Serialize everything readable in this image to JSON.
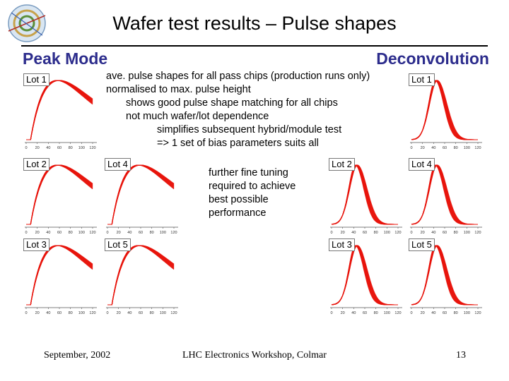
{
  "title": "Wafer test results – Pulse shapes",
  "sections": {
    "left": "Peak Mode",
    "right": "Deconvolution"
  },
  "notes": {
    "lines": [
      "ave. pulse shapes for all pass chips (production runs only)",
      "normalised to max. pulse height",
      "shows good pulse shape matching for all chips",
      "not much wafer/lot dependence",
      "simplifies subsequent hybrid/module test",
      "=> 1 set of bias parameters suits all"
    ],
    "extra": [
      "further fine tuning",
      "required to achieve",
      "best possible",
      "performance"
    ]
  },
  "footer": {
    "date": "September, 2002",
    "event": "LHC Electronics Workshop, Colmar",
    "page": "13"
  },
  "x_ticks": [
    "0",
    "20",
    "40",
    "60",
    "80",
    "100",
    "120"
  ],
  "curve_color": "#e8140c",
  "chart_data": [
    {
      "type": "line",
      "mode": "Peak Mode",
      "label": "Lot 1",
      "x_ticks": [
        0,
        20,
        40,
        60,
        80,
        100,
        120
      ]
    },
    {
      "type": "line",
      "mode": "Peak Mode",
      "label": "Lot 2",
      "x_ticks": [
        0,
        20,
        40,
        60,
        80,
        100,
        120
      ]
    },
    {
      "type": "line",
      "mode": "Peak Mode",
      "label": "Lot 3",
      "x_ticks": [
        0,
        20,
        40,
        60,
        80,
        100,
        120
      ]
    },
    {
      "type": "line",
      "mode": "Peak Mode",
      "label": "Lot 4",
      "x_ticks": [
        0,
        20,
        40,
        60,
        80,
        100,
        120
      ]
    },
    {
      "type": "line",
      "mode": "Peak Mode",
      "label": "Lot 5",
      "x_ticks": [
        0,
        20,
        40,
        60,
        80,
        100,
        120
      ]
    },
    {
      "type": "line",
      "mode": "Deconvolution",
      "label": "Lot 1",
      "x_ticks": [
        0,
        20,
        40,
        60,
        80,
        100,
        120
      ]
    },
    {
      "type": "line",
      "mode": "Deconvolution",
      "label": "Lot 2",
      "x_ticks": [
        0,
        20,
        40,
        60,
        80,
        100,
        120
      ]
    },
    {
      "type": "line",
      "mode": "Deconvolution",
      "label": "Lot 3",
      "x_ticks": [
        0,
        20,
        40,
        60,
        80,
        100,
        120
      ]
    },
    {
      "type": "line",
      "mode": "Deconvolution",
      "label": "Lot 4",
      "x_ticks": [
        0,
        20,
        40,
        60,
        80,
        100,
        120
      ]
    },
    {
      "type": "line",
      "mode": "Deconvolution",
      "label": "Lot 5",
      "x_ticks": [
        0,
        20,
        40,
        60,
        80,
        100,
        120
      ]
    }
  ]
}
